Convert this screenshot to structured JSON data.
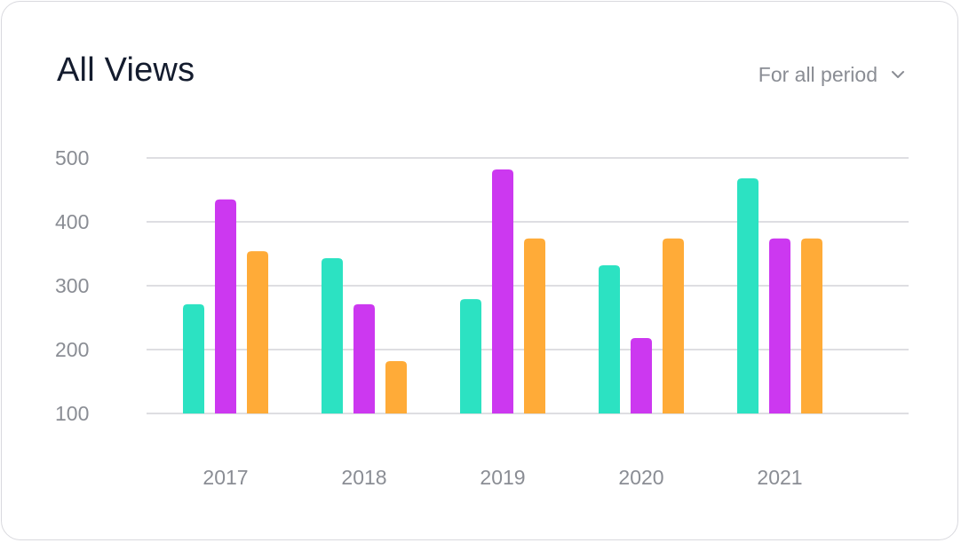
{
  "card": {
    "title": "All Views",
    "period_label": "For all period",
    "period_icon": "chevron-down-icon"
  },
  "chart_data": {
    "type": "bar",
    "categories": [
      "2017",
      "2018",
      "2019",
      "2020",
      "2021"
    ],
    "series": [
      {
        "color": "#2ce2c2",
        "values": [
          271,
          343,
          279,
          332,
          468
        ]
      },
      {
        "color": "#cc38f0",
        "values": [
          435,
          271,
          482,
          218,
          374
        ]
      },
      {
        "color": "#ffab38",
        "values": [
          354,
          182,
          374,
          374,
          374
        ]
      }
    ],
    "yticks": [
      100,
      200,
      300,
      400,
      500
    ],
    "ylim": [
      100,
      500
    ],
    "grid": true
  }
}
